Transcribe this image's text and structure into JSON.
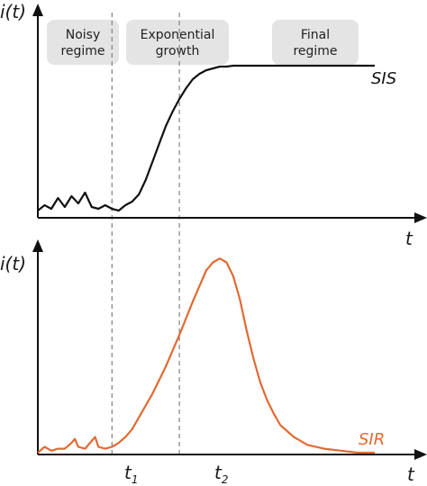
{
  "chart_data": [
    {
      "type": "line",
      "ylabel": "i(t)",
      "xlabel": "t",
      "series": [
        {
          "name": "SIS",
          "color": "#111111",
          "x": [
            0.0,
            0.02,
            0.04,
            0.06,
            0.08,
            0.1,
            0.12,
            0.14,
            0.16,
            0.18,
            0.2,
            0.22,
            0.24,
            0.26,
            0.28,
            0.3,
            0.32,
            0.34,
            0.36,
            0.38,
            0.4,
            0.42,
            0.44,
            0.46,
            0.48,
            0.5,
            0.52,
            0.54,
            0.56,
            0.58,
            0.6,
            0.62,
            0.64,
            0.66,
            0.68,
            0.7,
            0.75,
            0.8,
            0.85,
            0.9,
            0.95,
            1.0
          ],
          "y": [
            0.03,
            0.06,
            0.04,
            0.1,
            0.05,
            0.11,
            0.07,
            0.13,
            0.05,
            0.04,
            0.06,
            0.04,
            0.03,
            0.06,
            0.08,
            0.12,
            0.2,
            0.3,
            0.4,
            0.5,
            0.58,
            0.65,
            0.71,
            0.76,
            0.79,
            0.81,
            0.82,
            0.83,
            0.83,
            0.835,
            0.835,
            0.835,
            0.835,
            0.835,
            0.835,
            0.835,
            0.835,
            0.835,
            0.835,
            0.835,
            0.835,
            0.835
          ]
        }
      ],
      "annotations": {
        "regimes": [
          "Noisy\nregime",
          "Exponential\ngrowth",
          "Final\nregime"
        ]
      }
    },
    {
      "type": "line",
      "ylabel": "i(t)",
      "xlabel": "t",
      "xticks": [
        "t1",
        "t2"
      ],
      "series": [
        {
          "name": "SIR",
          "color": "#e06a32",
          "x": [
            0.0,
            0.02,
            0.04,
            0.06,
            0.08,
            0.1,
            0.11,
            0.12,
            0.14,
            0.16,
            0.17,
            0.18,
            0.2,
            0.22,
            0.24,
            0.26,
            0.28,
            0.3,
            0.34,
            0.38,
            0.42,
            0.46,
            0.5,
            0.52,
            0.54,
            0.56,
            0.58,
            0.6,
            0.62,
            0.64,
            0.66,
            0.68,
            0.7,
            0.72,
            0.76,
            0.8,
            0.85,
            0.9,
            0.95,
            1.0
          ],
          "y": [
            0.0,
            0.03,
            0.01,
            0.02,
            0.02,
            0.05,
            0.07,
            0.03,
            0.02,
            0.06,
            0.08,
            0.03,
            0.02,
            0.03,
            0.05,
            0.08,
            0.12,
            0.18,
            0.3,
            0.44,
            0.6,
            0.77,
            0.93,
            0.97,
            0.99,
            0.97,
            0.9,
            0.78,
            0.62,
            0.48,
            0.36,
            0.27,
            0.2,
            0.14,
            0.08,
            0.04,
            0.02,
            0.01,
            0.0,
            0.0
          ]
        }
      ]
    }
  ],
  "labels": {
    "top_y": "i(t)",
    "top_x": "t",
    "bottom_y": "i(t)",
    "bottom_x": "t",
    "sis": "SIS",
    "sir": "SIR",
    "t1": "t",
    "t1_sub": "1",
    "t2": "t",
    "t2_sub": "2",
    "regime_noisy_l1": "Noisy",
    "regime_noisy_l2": "regime",
    "regime_exp_l1": "Exponential",
    "regime_exp_l2": "growth",
    "regime_final_l1": "Final",
    "regime_final_l2": "regime"
  },
  "markers": {
    "t1": 0.22,
    "t2": 0.42
  },
  "colors": {
    "axis": "#111111",
    "regime_box": "#e4e4e4",
    "dashed": "#808080",
    "sir": "#e06a32"
  }
}
